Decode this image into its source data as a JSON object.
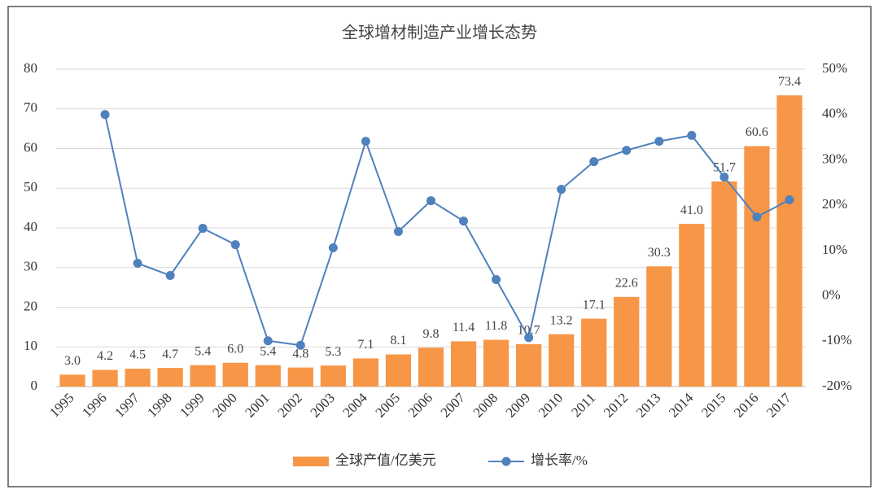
{
  "chart_data": {
    "type": "bar-line",
    "title": "全球增材制造产业增长态势",
    "categories": [
      "1995",
      "1996",
      "1997",
      "1998",
      "1999",
      "2000",
      "2001",
      "2002",
      "2003",
      "2004",
      "2005",
      "2006",
      "2007",
      "2008",
      "2009",
      "2010",
      "2011",
      "2012",
      "2013",
      "2014",
      "2015",
      "2016",
      "2017"
    ],
    "series": [
      {
        "name": "全球产值/亿美元",
        "type": "bar",
        "color": "#f79646",
        "values": [
          3.0,
          4.2,
          4.5,
          4.7,
          5.4,
          6.0,
          5.4,
          4.8,
          5.3,
          7.1,
          8.1,
          9.8,
          11.4,
          11.8,
          10.7,
          13.2,
          17.1,
          22.6,
          30.3,
          41.0,
          51.7,
          60.6,
          73.4
        ],
        "value_labels": [
          "3.0",
          "4.2",
          "4.5",
          "4.7",
          "5.4",
          "6.0",
          "5.4",
          "4.8",
          "5.3",
          "7.1",
          "8.1",
          "9.8",
          "11.4",
          "11.8",
          "10.7",
          "13.2",
          "17.1",
          "22.6",
          "30.3",
          "41.0",
          "51.7",
          "60.6",
          "73.4"
        ]
      },
      {
        "name": "增长率/%",
        "type": "line",
        "axis": "y2",
        "color": "#4f81bd",
        "values": [
          null,
          40.0,
          7.2,
          4.5,
          14.9,
          11.3,
          -9.9,
          -10.9,
          10.6,
          34.1,
          14.2,
          21.0,
          16.5,
          3.6,
          -9.2,
          23.5,
          29.6,
          32.1,
          34.1,
          35.4,
          26.2,
          17.4,
          21.2
        ]
      }
    ],
    "ylim": [
      0,
      80
    ],
    "yticks": [
      0,
      10,
      20,
      30,
      40,
      50,
      60,
      70,
      80
    ],
    "y2lim": [
      -20,
      50
    ],
    "y2ticks": [
      {
        "value": -20,
        "label": "-20%"
      },
      {
        "value": -10,
        "label": "-10%"
      },
      {
        "value": 0,
        "label": "0%"
      },
      {
        "value": 10,
        "label": "10%"
      },
      {
        "value": 20,
        "label": "20%"
      },
      {
        "value": 30,
        "label": "30%"
      },
      {
        "value": 40,
        "label": "40%"
      },
      {
        "value": 50,
        "label": "50%"
      }
    ],
    "grid": true,
    "legend": "bottom"
  }
}
